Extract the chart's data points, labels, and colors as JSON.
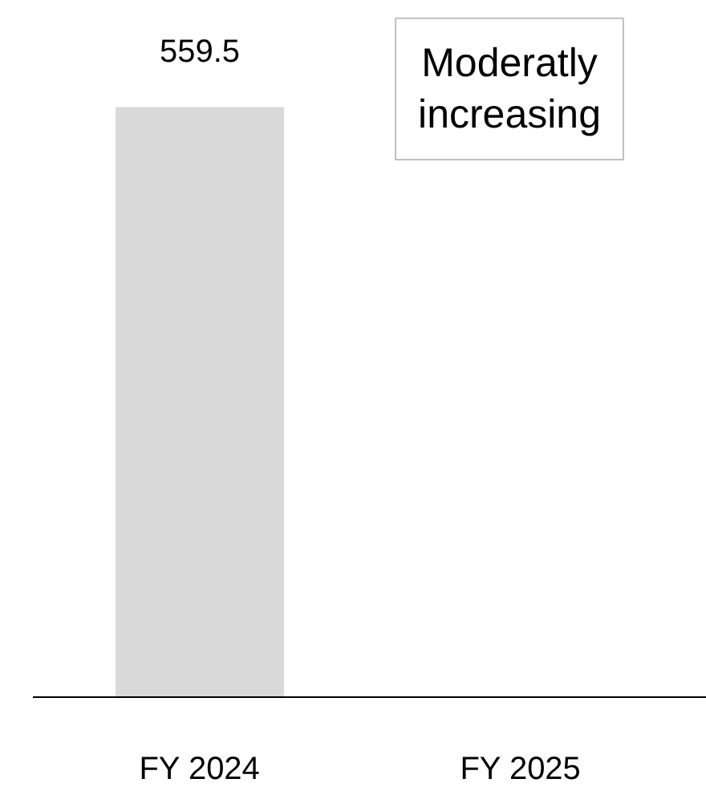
{
  "chart_data": {
    "type": "bar",
    "categories": [
      "FY 2024",
      "FY 2025"
    ],
    "values": [
      559.5,
      null
    ],
    "color": "#d9d9d9",
    "data_labels": true,
    "annotations": [
      "Moderatly increasing"
    ]
  }
}
